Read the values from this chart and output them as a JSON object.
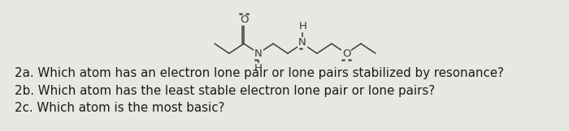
{
  "background_color": "#e9e7e3",
  "questions": [
    "2a. Which atom has an electron lone pair or lone pairs stabilized by resonance?",
    "2b. Which atom has the least stable electron lone pair or lone pairs?",
    "2c. Which atom is the most basic?"
  ],
  "mol_color": "#3a3a3a",
  "question_color": "#1a1a1a",
  "question_fontsize": 10.8,
  "mol_fontsize": 9.5
}
